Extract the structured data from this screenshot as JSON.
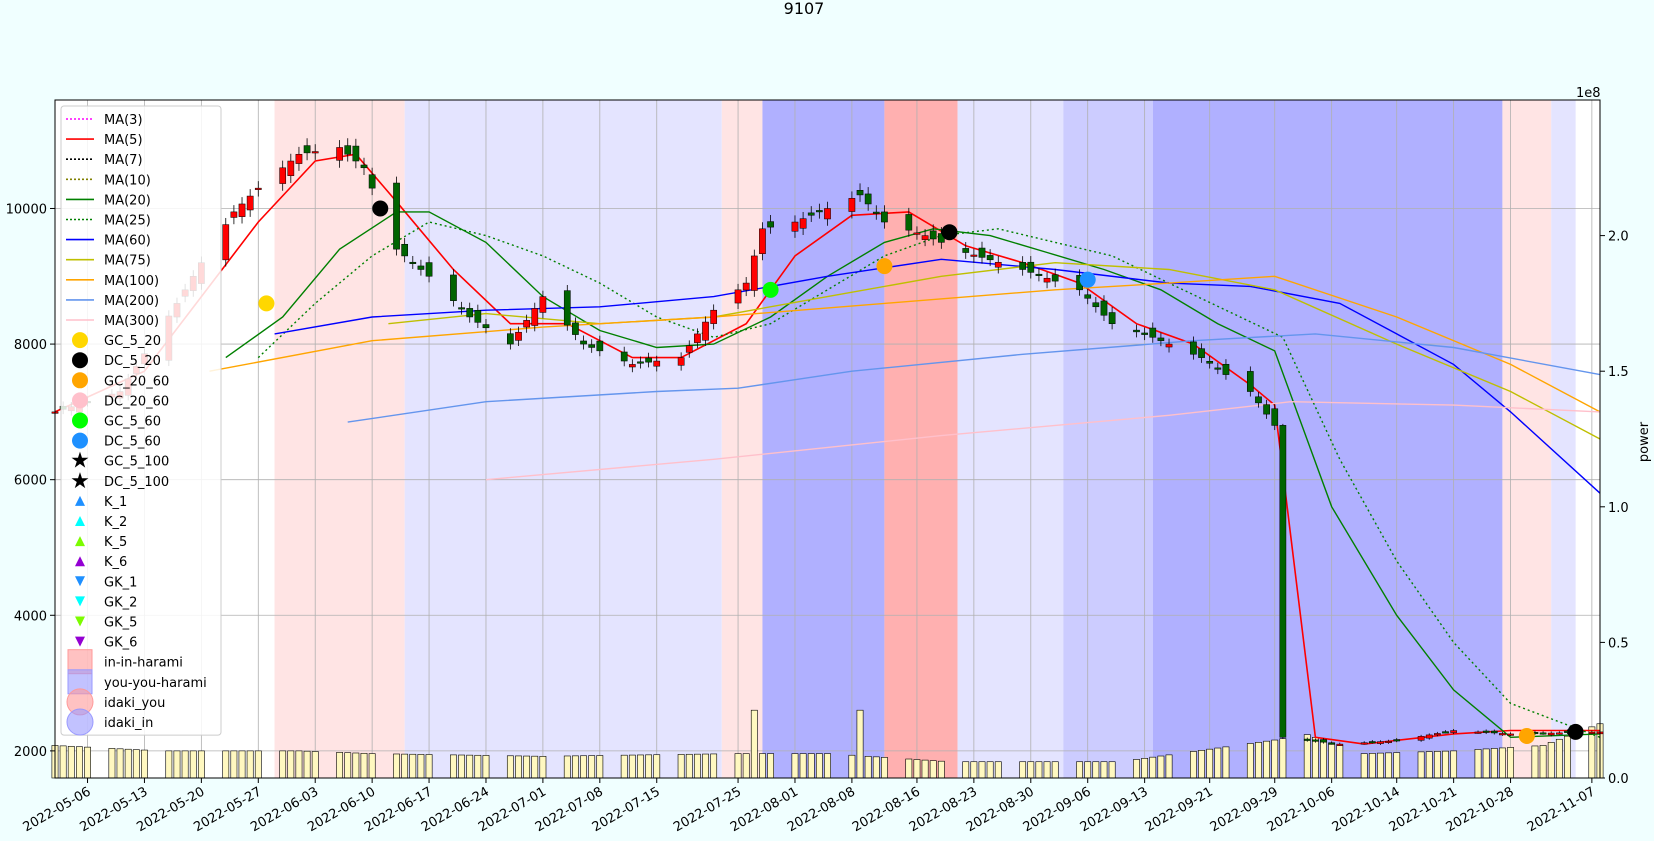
{
  "title": "9107",
  "chart_data": {
    "type": "candlestick",
    "title": "9107",
    "ylabel_right": "power",
    "right_axis_multiplier": "1e8",
    "ylim_left": [
      1600,
      11600
    ],
    "ylim_right": [
      0,
      2.5
    ],
    "yticks_left": [
      "2000",
      "4000",
      "6000",
      "8000",
      "10000"
    ],
    "yticks_right": [
      "0.0",
      "0.5",
      "1.0",
      "1.5",
      "2.0"
    ],
    "x_range": [
      "2022-05-02",
      "2022-11-08"
    ],
    "xticks": [
      "2022-05-06",
      "2022-05-13",
      "2022-05-20",
      "2022-05-27",
      "2022-06-03",
      "2022-06-10",
      "2022-06-17",
      "2022-06-24",
      "2022-07-01",
      "2022-07-08",
      "2022-07-15",
      "2022-07-25",
      "2022-08-01",
      "2022-08-08",
      "2022-08-16",
      "2022-08-23",
      "2022-08-30",
      "2022-09-06",
      "2022-09-13",
      "2022-09-21",
      "2022-09-29",
      "2022-10-06",
      "2022-10-14",
      "2022-10-21",
      "2022-10-28",
      "2022-11-07"
    ],
    "grid": true,
    "legend_position": "upper-left",
    "legend": [
      {
        "label": "MA(3)",
        "kind": "line",
        "color": "#ff00ff",
        "dash": "dotted"
      },
      {
        "label": "MA(5)",
        "kind": "line",
        "color": "#ff0000",
        "dash": "solid"
      },
      {
        "label": "MA(7)",
        "kind": "line",
        "color": "#000000",
        "dash": "dotted"
      },
      {
        "label": "MA(10)",
        "kind": "line",
        "color": "#808000",
        "dash": "dotted"
      },
      {
        "label": "MA(20)",
        "kind": "line",
        "color": "#008000",
        "dash": "solid"
      },
      {
        "label": "MA(25)",
        "kind": "line",
        "color": "#008000",
        "dash": "dotted"
      },
      {
        "label": "MA(60)",
        "kind": "line",
        "color": "#0000ff",
        "dash": "solid"
      },
      {
        "label": "MA(75)",
        "kind": "line",
        "color": "#bfbf00",
        "dash": "solid"
      },
      {
        "label": "MA(100)",
        "kind": "line",
        "color": "#ffa500",
        "dash": "solid"
      },
      {
        "label": "MA(200)",
        "kind": "line",
        "color": "#6495ed",
        "dash": "solid"
      },
      {
        "label": "MA(300)",
        "kind": "line",
        "color": "#ffc0cb",
        "dash": "solid"
      },
      {
        "label": "GC_5_20",
        "kind": "circle",
        "color": "#ffd700"
      },
      {
        "label": "DC_5_20",
        "kind": "circle",
        "color": "#000000"
      },
      {
        "label": "GC_20_60",
        "kind": "circle",
        "color": "#ffa500"
      },
      {
        "label": "DC_20_60",
        "kind": "circle",
        "color": "#ffc0cb"
      },
      {
        "label": "GC_5_60",
        "kind": "circle",
        "color": "#00ff00"
      },
      {
        "label": "DC_5_60",
        "kind": "circle",
        "color": "#1e90ff"
      },
      {
        "label": "GC_5_100",
        "kind": "star",
        "color": "#ffd700"
      },
      {
        "label": "DC_5_100",
        "kind": "star",
        "color": "#000000"
      },
      {
        "label": "K_1",
        "kind": "tri-up",
        "color": "#1e90ff"
      },
      {
        "label": "K_2",
        "kind": "tri-up",
        "color": "#00ffff"
      },
      {
        "label": "K_5",
        "kind": "tri-up",
        "color": "#7cfc00"
      },
      {
        "label": "K_6",
        "kind": "tri-up",
        "color": "#9400d3"
      },
      {
        "label": "GK_1",
        "kind": "tri-down",
        "color": "#1e90ff"
      },
      {
        "label": "GK_2",
        "kind": "tri-down",
        "color": "#00ffff"
      },
      {
        "label": "GK_5",
        "kind": "tri-down",
        "color": "#7cfc00"
      },
      {
        "label": "GK_6",
        "kind": "tri-down",
        "color": "#9400d3"
      },
      {
        "label": "in-in-harami",
        "kind": "square",
        "color": "#ff9999"
      },
      {
        "label": "you-you-harami",
        "kind": "square",
        "color": "#9999ff"
      },
      {
        "label": "idaki_you",
        "kind": "bigcircle",
        "color": "#ff9999"
      },
      {
        "label": "idaki_in",
        "kind": "bigcircle",
        "color": "#9999ff"
      }
    ],
    "background_bands": [
      {
        "from": "2022-05-29",
        "to": "2022-06-14",
        "color": "#ffe4e4"
      },
      {
        "from": "2022-06-14",
        "to": "2022-07-23",
        "color": "#e4e4ff"
      },
      {
        "from": "2022-07-23",
        "to": "2022-07-28",
        "color": "#ffe4e4"
      },
      {
        "from": "2022-07-28",
        "to": "2022-08-12",
        "color": "#b0b0ff"
      },
      {
        "from": "2022-08-12",
        "to": "2022-08-21",
        "color": "#ffb0b0"
      },
      {
        "from": "2022-08-21",
        "to": "2022-09-03",
        "color": "#e4e4ff"
      },
      {
        "from": "2022-09-03",
        "to": "2022-09-14",
        "color": "#ccccff"
      },
      {
        "from": "2022-09-14",
        "to": "2022-10-27",
        "color": "#b0b0ff"
      },
      {
        "from": "2022-10-27",
        "to": "2022-11-02",
        "color": "#ffe4e4"
      },
      {
        "from": "2022-11-02",
        "to": "2022-11-05",
        "color": "#e4e4ff"
      }
    ],
    "close_anchors": [
      [
        "2022-05-02",
        7000
      ],
      [
        "2022-05-10",
        7300
      ],
      [
        "2022-05-17",
        8600
      ],
      [
        "2022-05-20",
        9200
      ],
      [
        "2022-05-24",
        9950
      ],
      [
        "2022-05-27",
        10300
      ],
      [
        "2022-06-01",
        10800
      ],
      [
        "2022-06-06",
        10900
      ],
      [
        "2022-06-09",
        10600
      ],
      [
        "2022-06-13",
        9400
      ],
      [
        "2022-06-17",
        9000
      ],
      [
        "2022-06-22",
        8400
      ],
      [
        "2022-06-27",
        8000
      ],
      [
        "2022-07-01",
        8700
      ],
      [
        "2022-07-06",
        8000
      ],
      [
        "2022-07-12",
        7700
      ],
      [
        "2022-07-18",
        7800
      ],
      [
        "2022-07-22",
        8500
      ],
      [
        "2022-07-26",
        8900
      ],
      [
        "2022-07-28",
        9700
      ],
      [
        "2022-08-01",
        9800
      ],
      [
        "2022-08-05",
        10000
      ],
      [
        "2022-08-09",
        10200
      ],
      [
        "2022-08-12",
        9800
      ],
      [
        "2022-08-17",
        9600
      ],
      [
        "2022-08-22",
        9350
      ],
      [
        "2022-08-29",
        9100
      ],
      [
        "2022-09-05",
        8800
      ],
      [
        "2022-09-09",
        8300
      ],
      [
        "2022-09-14",
        8100
      ],
      [
        "2022-09-20",
        7800
      ],
      [
        "2022-09-26",
        7300
      ],
      [
        "2022-09-29",
        6800
      ],
      [
        "2022-09-30",
        2200
      ],
      [
        "2022-10-07",
        2100
      ],
      [
        "2022-10-14",
        2150
      ],
      [
        "2022-10-21",
        2300
      ],
      [
        "2022-10-28",
        2250
      ],
      [
        "2022-11-08",
        2280
      ]
    ],
    "moving_averages": [
      {
        "name": "MA(5)",
        "color": "#ff0000",
        "dash": "",
        "width": 1.6,
        "points": [
          [
            "2022-05-02",
            7000
          ],
          [
            "2022-05-13",
            7600
          ],
          [
            "2022-05-20",
            8700
          ],
          [
            "2022-05-27",
            9800
          ],
          [
            "2022-06-03",
            10700
          ],
          [
            "2022-06-08",
            10800
          ],
          [
            "2022-06-13",
            10100
          ],
          [
            "2022-06-20",
            9100
          ],
          [
            "2022-06-27",
            8300
          ],
          [
            "2022-07-04",
            8300
          ],
          [
            "2022-07-12",
            7800
          ],
          [
            "2022-07-18",
            7800
          ],
          [
            "2022-07-26",
            8300
          ],
          [
            "2022-08-01",
            9300
          ],
          [
            "2022-08-08",
            9900
          ],
          [
            "2022-08-15",
            9950
          ],
          [
            "2022-08-22",
            9450
          ],
          [
            "2022-08-29",
            9200
          ],
          [
            "2022-09-05",
            8900
          ],
          [
            "2022-09-12",
            8300
          ],
          [
            "2022-09-19",
            8000
          ],
          [
            "2022-09-26",
            7400
          ],
          [
            "2022-09-29",
            7100
          ],
          [
            "2022-10-04",
            2200
          ],
          [
            "2022-10-10",
            2100
          ],
          [
            "2022-10-21",
            2250
          ],
          [
            "2022-10-28",
            2300
          ],
          [
            "2022-11-08",
            2300
          ]
        ]
      },
      {
        "name": "MA(20)",
        "color": "#008000",
        "dash": "",
        "width": 1.4,
        "points": [
          [
            "2022-05-23",
            7800
          ],
          [
            "2022-05-30",
            8400
          ],
          [
            "2022-06-06",
            9400
          ],
          [
            "2022-06-13",
            9950
          ],
          [
            "2022-06-17",
            9950
          ],
          [
            "2022-06-24",
            9500
          ],
          [
            "2022-07-01",
            8700
          ],
          [
            "2022-07-08",
            8200
          ],
          [
            "2022-07-15",
            7950
          ],
          [
            "2022-07-22",
            8000
          ],
          [
            "2022-07-29",
            8400
          ],
          [
            "2022-08-05",
            9000
          ],
          [
            "2022-08-12",
            9500
          ],
          [
            "2022-08-18",
            9700
          ],
          [
            "2022-08-25",
            9600
          ],
          [
            "2022-09-01",
            9350
          ],
          [
            "2022-09-08",
            9100
          ],
          [
            "2022-09-15",
            8800
          ],
          [
            "2022-09-22",
            8300
          ],
          [
            "2022-09-29",
            7900
          ],
          [
            "2022-10-06",
            5600
          ],
          [
            "2022-10-14",
            4000
          ],
          [
            "2022-10-21",
            2900
          ],
          [
            "2022-10-28",
            2200
          ],
          [
            "2022-11-08",
            2250
          ]
        ]
      },
      {
        "name": "MA(25)",
        "color": "#008000",
        "dash": "2,3",
        "width": 1.4,
        "points": [
          [
            "2022-05-27",
            7800
          ],
          [
            "2022-06-03",
            8600
          ],
          [
            "2022-06-10",
            9300
          ],
          [
            "2022-06-17",
            9800
          ],
          [
            "2022-06-24",
            9600
          ],
          [
            "2022-07-01",
            9300
          ],
          [
            "2022-07-08",
            8900
          ],
          [
            "2022-07-15",
            8400
          ],
          [
            "2022-07-22",
            8100
          ],
          [
            "2022-07-29",
            8300
          ],
          [
            "2022-08-05",
            8800
          ],
          [
            "2022-08-12",
            9300
          ],
          [
            "2022-08-19",
            9600
          ],
          [
            "2022-08-26",
            9700
          ],
          [
            "2022-09-02",
            9500
          ],
          [
            "2022-09-09",
            9300
          ],
          [
            "2022-09-16",
            8900
          ],
          [
            "2022-09-23",
            8500
          ],
          [
            "2022-09-30",
            8100
          ],
          [
            "2022-10-07",
            6300
          ],
          [
            "2022-10-14",
            4800
          ],
          [
            "2022-10-21",
            3600
          ],
          [
            "2022-10-28",
            2700
          ],
          [
            "2022-11-08",
            2200
          ]
        ]
      },
      {
        "name": "MA(60)",
        "color": "#0000ff",
        "dash": "",
        "width": 1.4,
        "points": [
          [
            "2022-05-29",
            8150
          ],
          [
            "2022-06-10",
            8400
          ],
          [
            "2022-06-24",
            8500
          ],
          [
            "2022-07-08",
            8550
          ],
          [
            "2022-07-22",
            8700
          ],
          [
            "2022-08-05",
            9000
          ],
          [
            "2022-08-19",
            9250
          ],
          [
            "2022-09-02",
            9100
          ],
          [
            "2022-09-16",
            8900
          ],
          [
            "2022-09-26",
            8850
          ],
          [
            "2022-10-07",
            8600
          ],
          [
            "2022-10-21",
            7700
          ],
          [
            "2022-10-28",
            7000
          ],
          [
            "2022-11-08",
            5800
          ]
        ]
      },
      {
        "name": "MA(75)",
        "color": "#bfbf00",
        "dash": "",
        "width": 1.4,
        "points": [
          [
            "2022-06-12",
            8300
          ],
          [
            "2022-06-24",
            8450
          ],
          [
            "2022-07-08",
            8300
          ],
          [
            "2022-07-22",
            8400
          ],
          [
            "2022-08-05",
            8700
          ],
          [
            "2022-08-19",
            9000
          ],
          [
            "2022-09-02",
            9200
          ],
          [
            "2022-09-16",
            9100
          ],
          [
            "2022-09-29",
            8800
          ],
          [
            "2022-10-14",
            8000
          ],
          [
            "2022-10-28",
            7300
          ],
          [
            "2022-11-08",
            6600
          ]
        ]
      },
      {
        "name": "MA(100)",
        "color": "#ffa500",
        "dash": "",
        "width": 1.4,
        "points": [
          [
            "2022-05-21",
            7600
          ],
          [
            "2022-06-10",
            8050
          ],
          [
            "2022-07-01",
            8250
          ],
          [
            "2022-07-22",
            8400
          ],
          [
            "2022-08-12",
            8600
          ],
          [
            "2022-09-02",
            8800
          ],
          [
            "2022-09-16",
            8900
          ],
          [
            "2022-09-29",
            9000
          ],
          [
            "2022-10-14",
            8400
          ],
          [
            "2022-10-28",
            7700
          ],
          [
            "2022-11-08",
            7000
          ]
        ]
      },
      {
        "name": "MA(200)",
        "color": "#6495ed",
        "dash": "",
        "width": 1.4,
        "points": [
          [
            "2022-06-07",
            6850
          ],
          [
            "2022-06-24",
            7150
          ],
          [
            "2022-07-15",
            7300
          ],
          [
            "2022-07-25",
            7350
          ],
          [
            "2022-08-08",
            7600
          ],
          [
            "2022-08-29",
            7850
          ],
          [
            "2022-09-19",
            8050
          ],
          [
            "2022-10-04",
            8150
          ],
          [
            "2022-10-21",
            7950
          ],
          [
            "2022-11-08",
            7550
          ]
        ]
      },
      {
        "name": "MA(300)",
        "color": "#ffc0cb",
        "dash": "",
        "width": 1.4,
        "points": [
          [
            "2022-06-24",
            6000
          ],
          [
            "2022-07-22",
            6300
          ],
          [
            "2022-08-19",
            6650
          ],
          [
            "2022-09-16",
            6950
          ],
          [
            "2022-10-01",
            7150
          ],
          [
            "2022-10-21",
            7100
          ],
          [
            "2022-11-08",
            7000
          ]
        ]
      }
    ],
    "volume_anchors": [
      [
        "2022-05-02",
        0.12
      ],
      [
        "2022-05-15",
        0.1
      ],
      [
        "2022-06-01",
        0.1
      ],
      [
        "2022-06-10",
        0.09
      ],
      [
        "2022-07-01",
        0.08
      ],
      [
        "2022-07-25",
        0.09
      ],
      [
        "2022-08-05",
        0.09
      ],
      [
        "2022-08-20",
        0.06
      ],
      [
        "2022-09-10",
        0.06
      ],
      [
        "2022-09-29",
        0.14
      ],
      [
        "2022-10-03",
        0.16
      ],
      [
        "2022-10-10",
        0.09
      ],
      [
        "2022-10-21",
        0.1
      ],
      [
        "2022-11-01",
        0.12
      ],
      [
        "2022-11-08",
        0.2
      ]
    ],
    "volume_spikes": [
      [
        "2022-07-27",
        0.25
      ],
      [
        "2022-08-09",
        0.25
      ],
      [
        "2022-11-06",
        0.35
      ]
    ],
    "cross_markers": [
      {
        "label": "GC_5_20",
        "date": "2022-05-28",
        "value": 8600
      },
      {
        "label": "DC_5_20",
        "date": "2022-06-11",
        "value": 10000
      },
      {
        "label": "GC_5_60",
        "date": "2022-07-29",
        "value": 8800
      },
      {
        "label": "GC_20_60",
        "date": "2022-08-12",
        "value": 9150
      },
      {
        "label": "DC_5_20",
        "date": "2022-08-20",
        "value": 9650
      },
      {
        "label": "DC_5_60",
        "date": "2022-09-06",
        "value": 8950
      },
      {
        "label": "DC_5_20",
        "date": "2022-11-05",
        "value": 2280
      },
      {
        "label": "GC_20_60",
        "date": "2022-10-30",
        "value": 2220
      }
    ]
  }
}
